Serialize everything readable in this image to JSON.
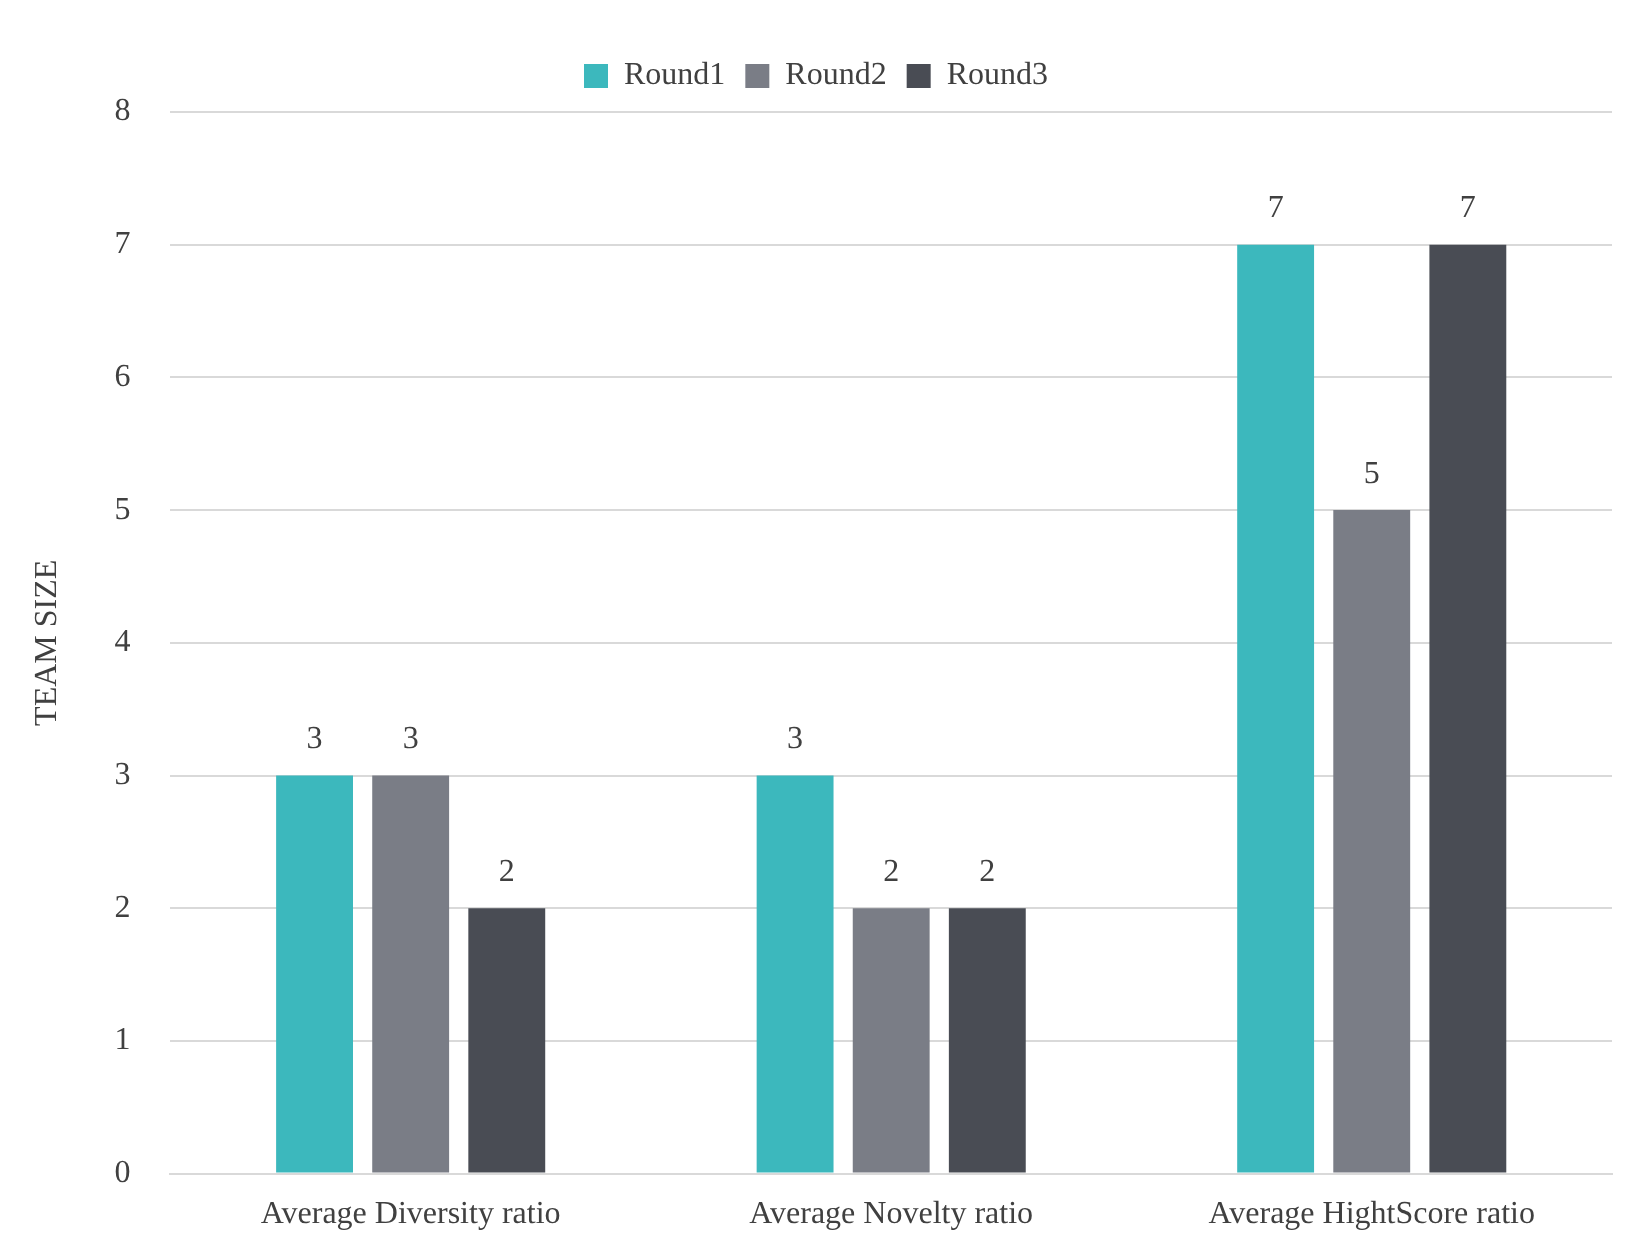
{
  "chart_data": {
    "type": "bar",
    "ylabel": "TEAM SIZE",
    "categories": [
      "Average Diversity ratio",
      "Average Novelty ratio",
      "Average HightScore ratio"
    ],
    "series": [
      {
        "name": "Round1",
        "color": "#3cb8bd",
        "values": [
          3,
          3,
          7
        ]
      },
      {
        "name": "Round2",
        "color": "#7a7d86",
        "values": [
          3,
          2,
          5
        ]
      },
      {
        "name": "Round3",
        "color": "#494c54",
        "values": [
          2,
          2,
          7
        ]
      }
    ],
    "ylim": [
      0,
      8
    ],
    "yticks": [
      0,
      1,
      2,
      3,
      4,
      5,
      6,
      7,
      8
    ],
    "grid": "y",
    "legend": "top",
    "data_labels": true
  }
}
